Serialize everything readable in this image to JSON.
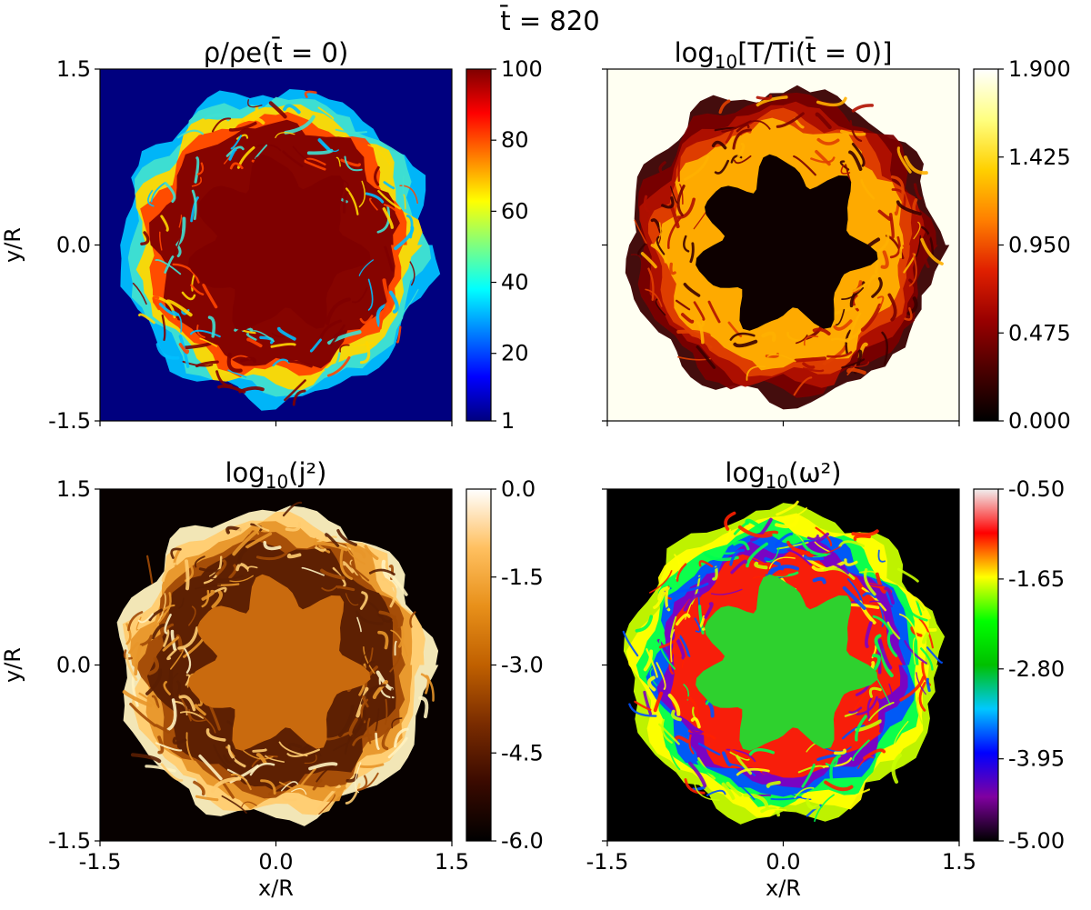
{
  "figure": {
    "suptitle": "t̄ = 820"
  },
  "chart_data": [
    {
      "type": "heatmap",
      "id": "density",
      "title": "ρ/ρe(t̄ = 0)",
      "xlabel": "",
      "ylabel": "y/R",
      "xlim": [
        -1.5,
        1.5
      ],
      "ylim": [
        -1.5,
        1.5
      ],
      "x_ticks": [],
      "y_ticks": [
        "1.5",
        "0.0",
        "-1.5"
      ],
      "colorbar": {
        "min": 1,
        "max": 100,
        "ticks": [
          "100",
          "80",
          "60",
          "40",
          "20",
          "1"
        ],
        "tick_values": [
          100,
          80,
          60,
          40,
          20,
          1
        ],
        "colormap": [
          "#00007f",
          "#0000ff",
          "#007fff",
          "#00ffff",
          "#7fff7f",
          "#ffff00",
          "#ff7f00",
          "#ff0000",
          "#7f0000"
        ]
      },
      "background": "#00007f",
      "core_color": "#7f0000",
      "ring_colors": [
        "#00bfff",
        "#40e0d0",
        "#ffd700",
        "#ff4500",
        "#7f0000"
      ]
    },
    {
      "type": "heatmap",
      "id": "temperature",
      "title": "log10[T/Ti(t̄ = 0)]",
      "xlabel": "",
      "ylabel": "",
      "xlim": [
        -1.5,
        1.5
      ],
      "ylim": [
        -1.5,
        1.5
      ],
      "x_ticks": [],
      "y_ticks": [],
      "colorbar": {
        "min": 0,
        "max": 1.9,
        "ticks": [
          "1.900",
          "1.425",
          "0.950",
          "0.475",
          "0.000"
        ],
        "tick_values": [
          1.9,
          1.425,
          0.95,
          0.475,
          0.0
        ],
        "colormap": [
          "#000000",
          "#4a0000",
          "#990000",
          "#e02000",
          "#ff7f00",
          "#ffd000",
          "#ffff80",
          "#ffffff"
        ]
      },
      "background": "#fffff2",
      "core_color": "#0d0000",
      "ring_colors": [
        "#3a0000",
        "#7a0000",
        "#b01000",
        "#e04000",
        "#ffb000"
      ]
    },
    {
      "type": "heatmap",
      "id": "current",
      "title": "log10(j²)",
      "xlabel": "x/R",
      "ylabel": "y/R",
      "xlim": [
        -1.5,
        1.5
      ],
      "ylim": [
        -1.5,
        1.5
      ],
      "x_ticks": [
        "-1.5",
        "0.0",
        "1.5"
      ],
      "y_ticks": [
        "1.5",
        "0.0",
        "-1.5"
      ],
      "colorbar": {
        "min": -6.0,
        "max": 0.0,
        "ticks": [
          "0.0",
          "-1.5",
          "-3.0",
          "-4.5",
          "-6.0"
        ],
        "tick_values": [
          0.0,
          -1.5,
          -3.0,
          -4.5,
          -6.0
        ],
        "colormap": [
          "#000000",
          "#3a0a00",
          "#7a2c00",
          "#c06000",
          "#e8901a",
          "#ffc060",
          "#ffffff"
        ]
      },
      "background": "#070100",
      "core_color": "#c96a0e",
      "ring_colors": [
        "#fff2c0",
        "#ffcc70",
        "#e8962a",
        "#a24a06",
        "#5a1e02"
      ]
    },
    {
      "type": "heatmap",
      "id": "vorticity",
      "title": "log10(ω²)",
      "xlabel": "x/R",
      "ylabel": "",
      "xlim": [
        -1.5,
        1.5
      ],
      "ylim": [
        -1.5,
        1.5
      ],
      "x_ticks": [
        "-1.5",
        "0.0",
        "1.5"
      ],
      "y_ticks": [],
      "colorbar": {
        "min": -5.0,
        "max": -0.5,
        "ticks": [
          "-0.50",
          "-1.65",
          "-2.80",
          "-3.95",
          "-5.00"
        ],
        "tick_values": [
          -0.5,
          -1.65,
          -2.8,
          -3.95,
          -5.0
        ],
        "colormap": [
          "#000000",
          "#8000a0",
          "#0000ff",
          "#00c8ff",
          "#00c000",
          "#00ff00",
          "#ffff00",
          "#ff0000",
          "#f0f0f0"
        ]
      },
      "background": "#000000",
      "core_color": "#2ed12e",
      "ring_colors": [
        "#c8ff00",
        "#ffff00",
        "#00ff50",
        "#0050ff",
        "#8000c0",
        "#ff2000"
      ]
    }
  ]
}
